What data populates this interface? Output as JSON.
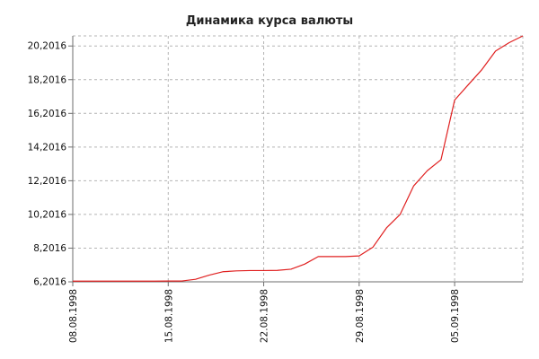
{
  "chart_data": {
    "type": "line",
    "title": "Динамика курса валюты",
    "xlabel": "",
    "ylabel": "",
    "x_ticks": [
      "08.08.1998",
      "15.08.1998",
      "22.08.1998",
      "29.08.1998",
      "05.09.1998"
    ],
    "y_ticks": [
      "6,2016",
      "8,2016",
      "10,2016",
      "12,2016",
      "14,2016",
      "16,2016",
      "18,2016",
      "20,2016"
    ],
    "xlim": [
      "08.08.1998",
      "10.09.1998"
    ],
    "ylim": [
      6.2016,
      20.8
    ],
    "grid": true,
    "legend": "none",
    "line_color": "#e02020",
    "series": [
      {
        "x": [
          "08.08.1998",
          "09.08.1998",
          "10.08.1998",
          "11.08.1998",
          "12.08.1998",
          "13.08.1998",
          "14.08.1998",
          "15.08.1998",
          "16.08.1998",
          "17.08.1998",
          "18.08.1998",
          "19.08.1998",
          "20.08.1998",
          "21.08.1998",
          "22.08.1998",
          "23.08.1998",
          "24.08.1998",
          "25.08.1998",
          "26.08.1998",
          "27.08.1998",
          "28.08.1998",
          "29.08.1998",
          "30.08.1998",
          "31.08.1998",
          "01.09.1998",
          "02.09.1998",
          "03.09.1998",
          "04.09.1998",
          "05.09.1998",
          "06.09.1998",
          "07.09.1998",
          "08.09.1998",
          "09.09.1998",
          "10.09.1998"
        ],
        "values": [
          6.24,
          6.24,
          6.24,
          6.24,
          6.24,
          6.24,
          6.24,
          6.25,
          6.25,
          6.35,
          6.6,
          6.8,
          6.85,
          6.87,
          6.87,
          6.88,
          6.95,
          7.25,
          7.7,
          7.7,
          7.7,
          7.74,
          8.25,
          9.4,
          10.2,
          11.9,
          12.8,
          13.45,
          16.99,
          17.9,
          18.8,
          19.9,
          20.4,
          20.8
        ]
      }
    ]
  }
}
